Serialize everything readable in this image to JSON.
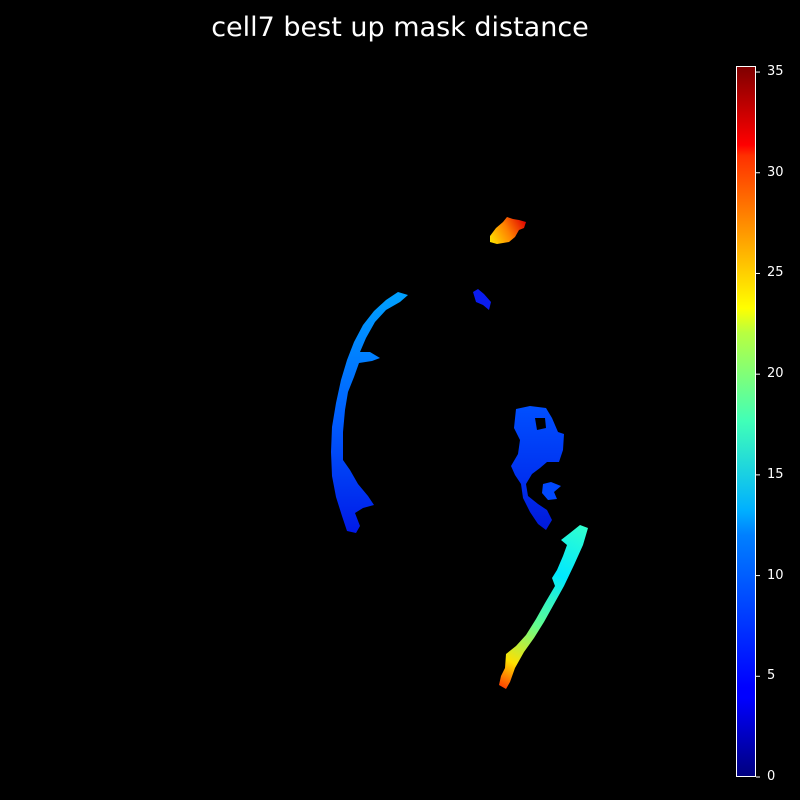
{
  "title": "cell7 best up mask distance",
  "colormap": "jet",
  "background_color": "#000000",
  "colorbar": {
    "min": 0,
    "max": 35.3,
    "ticks": [
      {
        "value": 0,
        "label": "0"
      },
      {
        "value": 5,
        "label": "5"
      },
      {
        "value": 10,
        "label": "10"
      },
      {
        "value": 15,
        "label": "15"
      },
      {
        "value": 20,
        "label": "20"
      },
      {
        "value": 25,
        "label": "25"
      },
      {
        "value": 30,
        "label": "30"
      },
      {
        "value": 35,
        "label": "35"
      }
    ]
  }
}
